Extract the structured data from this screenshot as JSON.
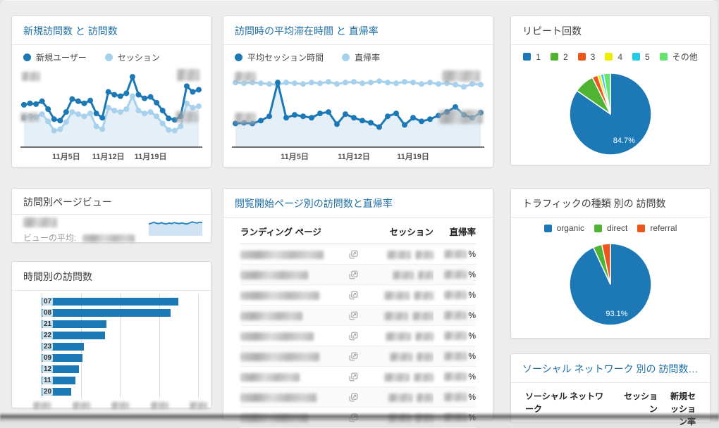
{
  "page": {
    "background": "#ededed"
  },
  "palette": {
    "series_blue": "#1c79b6",
    "series_light_blue": "#a7d1ed",
    "area_fill": "#e5eff7",
    "green": "#50b432",
    "orange_red": "#ed561b",
    "yellow": "#eded00",
    "cyan": "#24cbe5",
    "light_green": "#64e572",
    "title_link_blue": "#1d6fa5",
    "title_dark": "#3c3c3c"
  },
  "cards": {
    "new_visits": {
      "title": "新規訪問数 と 訪問数"
    },
    "avg_time": {
      "title": "訪問時の平均滞在時間 と 直帰率"
    },
    "repeat": {
      "title": "リピート回数"
    },
    "pageviews": {
      "title": "訪問別ページビュー",
      "avg_label": "ビューの平均:",
      "value_redacted": true,
      "avg_value_redacted": true
    },
    "hourly": {
      "title": "時間別の訪問数"
    },
    "landing": {
      "title": "閲覧開始ページ別の訪問数と直帰率"
    },
    "traffic": {
      "title": "トラフィックの種類 別の 訪問数"
    },
    "social": {
      "title": "ソーシャル ネットワーク 別の 訪問数 と ..."
    }
  },
  "tables": {
    "landing": {
      "columns": [
        "ランディング ページ",
        "セッション",
        "直帰率"
      ],
      "row_count": 9,
      "values_redacted": true,
      "percent_suffix": "%"
    },
    "social": {
      "columns": [
        "ソーシャル ネットワーク",
        "セッション",
        "新規セッション率"
      ],
      "rows_cut_off": true
    }
  },
  "chart_data": [
    {
      "id": "new_visits",
      "type": "line",
      "title": "新規訪問数 と 訪問数",
      "x_tick_labels": [
        "11月5日",
        "11月12日",
        "11月19日"
      ],
      "x_tick_indices": [
        7,
        14,
        21
      ],
      "y_axis_labels_redacted": true,
      "series": [
        {
          "name": "新規ユーザー",
          "color": "#1c79b6",
          "values": [
            56,
            58,
            57,
            61,
            50,
            36,
            34,
            46,
            64,
            61,
            58,
            62,
            44,
            38,
            74,
            70,
            68,
            72,
            95,
            70,
            65,
            67,
            59,
            48,
            37,
            35,
            40,
            82,
            74,
            77
          ]
        },
        {
          "name": "セッション",
          "color": "#a7d1ed",
          "fill": "#e5eff7",
          "values": [
            38,
            40,
            39,
            43,
            33,
            20,
            22,
            32,
            46,
            43,
            40,
            44,
            26,
            22,
            52,
            48,
            46,
            50,
            68,
            48,
            44,
            46,
            40,
            30,
            21,
            20,
            26,
            58,
            52,
            54
          ]
        }
      ]
    },
    {
      "id": "avg_time_bounce",
      "type": "line",
      "title": "訪問時の平均滞在時間 と 直帰率",
      "x_tick_labels": [
        "11月5日",
        "11月12日",
        "11月19日"
      ],
      "x_tick_indices": [
        7,
        14,
        21
      ],
      "y_axis_labels_redacted": true,
      "series": [
        {
          "name": "平均セッション時間",
          "color": "#1c79b6",
          "fill": "#e5eff7",
          "values": [
            30,
            31,
            30,
            34,
            40,
            87,
            38,
            42,
            40,
            38,
            44,
            46,
            29,
            43,
            38,
            34,
            31,
            25,
            40,
            44,
            28,
            38,
            33,
            36,
            41,
            46,
            53,
            42,
            38,
            45
          ]
        },
        {
          "name": "直帰率",
          "color": "#a7d1ed",
          "values": [
            87,
            86,
            87,
            86,
            85,
            84,
            87,
            86,
            85,
            87,
            86,
            88,
            85,
            87,
            88,
            86,
            87,
            89,
            87,
            86,
            88,
            87,
            85,
            87,
            85,
            86,
            84,
            81,
            85,
            84
          ]
        }
      ]
    },
    {
      "id": "repeat_count",
      "type": "pie",
      "title": "リピート回数",
      "data_label": "84.7%",
      "legend_position": "top",
      "slices": [
        {
          "label": "1",
          "value": 84.7,
          "color": "#1c79b6"
        },
        {
          "label": "2",
          "value": 8.0,
          "color": "#50b432"
        },
        {
          "label": "3",
          "value": 2.2,
          "color": "#ed561b"
        },
        {
          "label": "4",
          "value": 1.2,
          "color": "#eded00"
        },
        {
          "label": "5",
          "value": 1.2,
          "color": "#24cbe5"
        },
        {
          "label": "その他",
          "value": 2.7,
          "color": "#64e572"
        }
      ]
    },
    {
      "id": "pageviews_sparkline",
      "type": "area",
      "title": "訪問別ページビュー",
      "metric_value_redacted": true,
      "line_color": "#2f87c4",
      "fill_color": "#cfe3f3",
      "values": [
        62,
        66,
        72,
        66,
        64,
        70,
        64,
        62,
        68,
        64,
        70,
        66,
        64,
        68,
        64,
        62,
        68,
        74,
        70,
        68,
        72,
        70
      ]
    },
    {
      "id": "visits_by_hour",
      "type": "bar",
      "title": "時間別の訪問数",
      "categories": [
        "07",
        "08",
        "21",
        "22",
        "23",
        "09",
        "12",
        "11",
        "20"
      ],
      "values": [
        350,
        330,
        165,
        163,
        109,
        105,
        96,
        87,
        76
      ],
      "xlim": [
        0,
        400
      ],
      "bar_color": "#1c79b6",
      "x_tick_labels_redacted": true
    },
    {
      "id": "traffic_type",
      "type": "pie",
      "title": "トラフィックの種類 別の 訪問数",
      "data_label": "93.1%",
      "legend_position": "top",
      "slices": [
        {
          "label": "organic",
          "value": 93.1,
          "color": "#1c79b6"
        },
        {
          "label": "direct",
          "value": 3.5,
          "color": "#50b432"
        },
        {
          "label": "referral",
          "value": 3.4,
          "color": "#ed561b"
        }
      ]
    }
  ]
}
